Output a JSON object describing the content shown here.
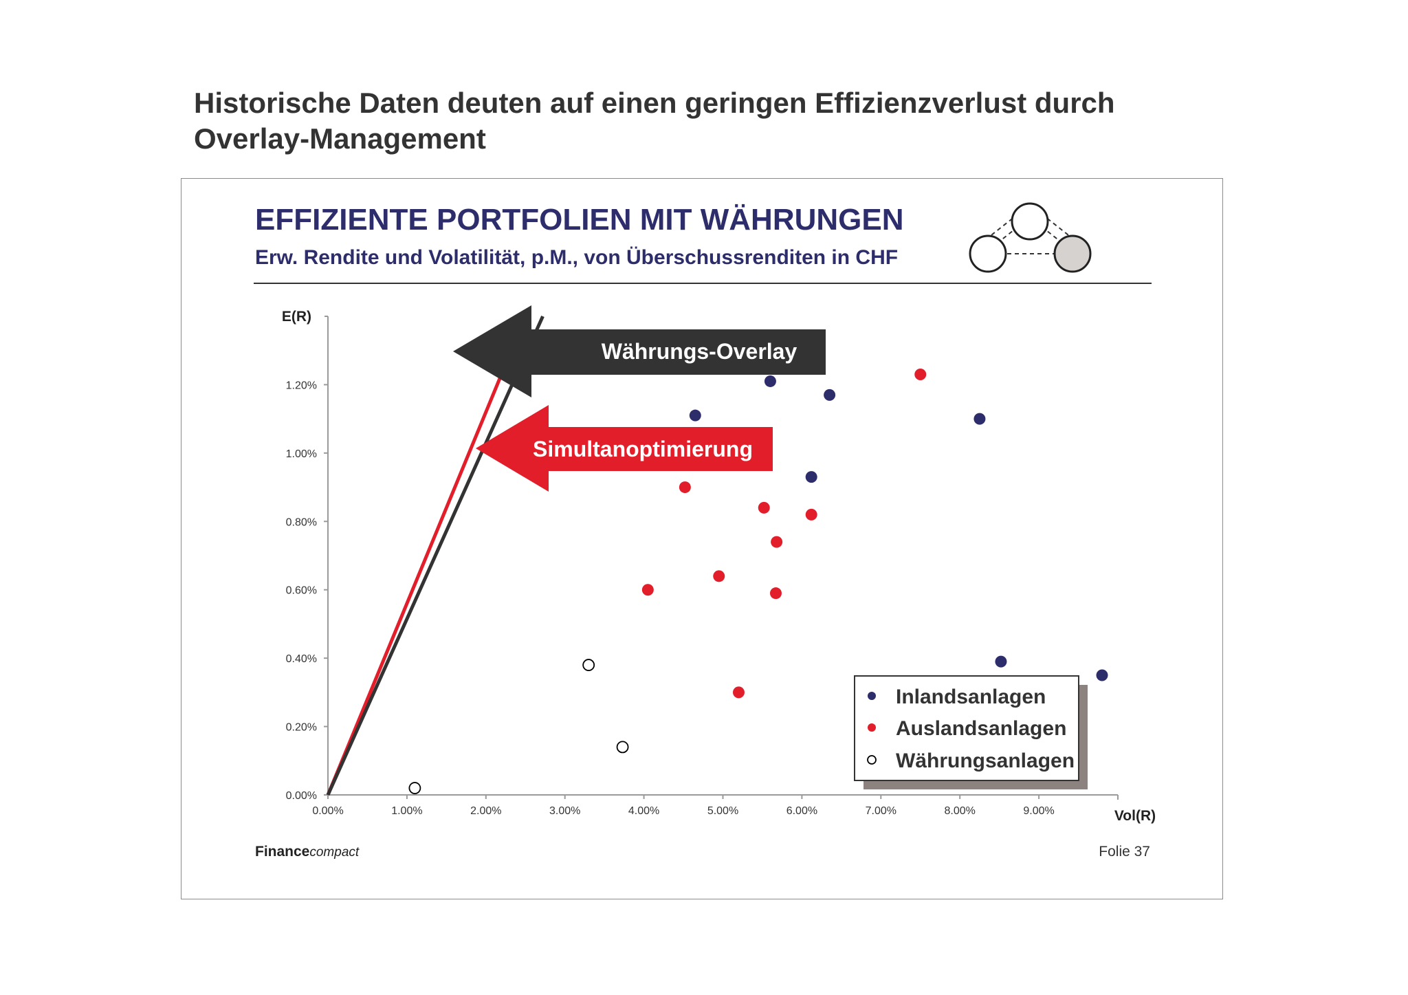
{
  "page": {
    "heading_line1": "Historische Daten deuten auf einen geringen Effizienzverlust durch",
    "heading_line2": "Overlay-Management"
  },
  "slide": {
    "title": "EFFIZIENTE PORTFOLIEN MIT WÄHRUNGEN",
    "subtitle": "Erw. Rendite und Volatilität, p.M., von Überschussrenditen in CHF",
    "brand_bold": "Finance",
    "brand_italic": "compact",
    "slide_number": "Folie 37"
  },
  "colors": {
    "title_navy": "#2e2d6b",
    "inland": "#2e2d6b",
    "ausland": "#e31e2b",
    "overlay_arrow": "#333333",
    "simultan_arrow": "#e31e2b",
    "legend_shadow": "#8c8380"
  },
  "chart_data": {
    "type": "scatter",
    "xlabel": "Vol(R)",
    "ylabel": "E(R)",
    "xlim": [
      0,
      0.1
    ],
    "ylim": [
      0,
      0.014
    ],
    "x_ticks": [
      "0.00%",
      "1.00%",
      "2.00%",
      "3.00%",
      "4.00%",
      "5.00%",
      "6.00%",
      "7.00%",
      "8.00%",
      "9.00%"
    ],
    "y_ticks": [
      "0.00%",
      "0.20%",
      "0.40%",
      "0.60%",
      "0.80%",
      "1.00%",
      "1.20%"
    ],
    "grid": false,
    "legend_position": "bottom-right",
    "series": [
      {
        "name": "Inlandsanlagen",
        "marker": "filled-circle",
        "color": "#2e2d6b",
        "points": [
          [
            0.0465,
            0.0111
          ],
          [
            0.056,
            0.0121
          ],
          [
            0.0635,
            0.0117
          ],
          [
            0.0825,
            0.011
          ],
          [
            0.0612,
            0.0093
          ],
          [
            0.0852,
            0.0039
          ],
          [
            0.098,
            0.0035
          ]
        ]
      },
      {
        "name": "Auslandsanlagen",
        "marker": "filled-circle",
        "color": "#e31e2b",
        "points": [
          [
            0.0452,
            0.009
          ],
          [
            0.0552,
            0.0084
          ],
          [
            0.0612,
            0.0082
          ],
          [
            0.0568,
            0.0074
          ],
          [
            0.0495,
            0.0064
          ],
          [
            0.0405,
            0.006
          ],
          [
            0.0567,
            0.0059
          ],
          [
            0.052,
            0.003
          ],
          [
            0.075,
            0.0123
          ]
        ]
      },
      {
        "name": "Währungsanlagen",
        "marker": "open-circle",
        "color": "#000000",
        "points": [
          [
            0.011,
            0.0002
          ],
          [
            0.033,
            0.0038
          ],
          [
            0.0373,
            0.0014
          ]
        ]
      }
    ],
    "lines": [
      {
        "name": "Simultanoptimierung",
        "color": "#e31e2b",
        "from": [
          0,
          0
        ],
        "to": [
          0.025,
          0.014
        ]
      },
      {
        "name": "Währungs-Overlay",
        "color": "#333333",
        "from": [
          0,
          0
        ],
        "to": [
          0.0272,
          0.014
        ]
      }
    ],
    "annotations": [
      {
        "text": "Währungs-Overlay",
        "style": "dark left-pointing arrow",
        "points_to": "Währungs-Overlay"
      },
      {
        "text": "Simultanoptimierung",
        "style": "red left-pointing arrow",
        "points_to": "Simultanoptimierung"
      }
    ]
  }
}
